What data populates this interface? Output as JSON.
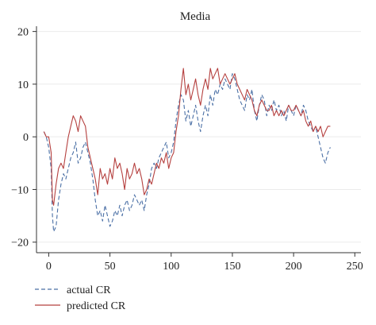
{
  "chart_data": {
    "type": "line",
    "title": "Media",
    "xlabel": "",
    "ylabel": "",
    "xlim": [
      -10,
      255
    ],
    "ylim": [
      -22,
      21
    ],
    "xticks": [
      0,
      50,
      100,
      150,
      200,
      250
    ],
    "yticks": [
      20,
      10,
      0,
      -10,
      -20
    ],
    "grid": "horizontal",
    "legend": "bottom-left",
    "series": [
      {
        "name": "actual CR",
        "color": "#4a6fa5",
        "style": "dashed",
        "points": [
          [
            -4,
            1
          ],
          [
            -2,
            0
          ],
          [
            0,
            -2
          ],
          [
            2,
            -6
          ],
          [
            3,
            -15
          ],
          [
            4,
            -18
          ],
          [
            6,
            -17
          ],
          [
            8,
            -12
          ],
          [
            10,
            -9
          ],
          [
            12,
            -7
          ],
          [
            14,
            -8
          ],
          [
            16,
            -6
          ],
          [
            18,
            -4
          ],
          [
            20,
            -3
          ],
          [
            22,
            -1
          ],
          [
            24,
            -5
          ],
          [
            26,
            -4
          ],
          [
            28,
            -2
          ],
          [
            30,
            -1
          ],
          [
            32,
            -3
          ],
          [
            34,
            -5
          ],
          [
            36,
            -8
          ],
          [
            38,
            -12
          ],
          [
            40,
            -15
          ],
          [
            42,
            -14
          ],
          [
            44,
            -16
          ],
          [
            46,
            -13
          ],
          [
            48,
            -15
          ],
          [
            50,
            -17
          ],
          [
            52,
            -16
          ],
          [
            54,
            -14
          ],
          [
            56,
            -15
          ],
          [
            58,
            -13
          ],
          [
            60,
            -15
          ],
          [
            62,
            -13
          ],
          [
            64,
            -12
          ],
          [
            66,
            -14
          ],
          [
            68,
            -13
          ],
          [
            70,
            -11
          ],
          [
            72,
            -12
          ],
          [
            74,
            -13
          ],
          [
            76,
            -12
          ],
          [
            78,
            -14
          ],
          [
            80,
            -11
          ],
          [
            82,
            -9
          ],
          [
            84,
            -6
          ],
          [
            86,
            -5
          ],
          [
            88,
            -6
          ],
          [
            90,
            -4
          ],
          [
            92,
            -3
          ],
          [
            94,
            -2
          ],
          [
            96,
            -1
          ],
          [
            98,
            -4
          ],
          [
            100,
            -3
          ],
          [
            102,
            -1
          ],
          [
            104,
            3
          ],
          [
            106,
            6
          ],
          [
            108,
            8
          ],
          [
            110,
            7
          ],
          [
            112,
            3
          ],
          [
            114,
            5
          ],
          [
            116,
            2
          ],
          [
            118,
            4
          ],
          [
            120,
            6
          ],
          [
            122,
            3
          ],
          [
            124,
            1
          ],
          [
            126,
            4
          ],
          [
            128,
            6
          ],
          [
            130,
            4
          ],
          [
            132,
            8
          ],
          [
            134,
            6
          ],
          [
            136,
            9
          ],
          [
            138,
            8
          ],
          [
            140,
            10
          ],
          [
            142,
            9
          ],
          [
            144,
            11
          ],
          [
            146,
            10
          ],
          [
            148,
            9
          ],
          [
            150,
            12
          ],
          [
            152,
            11
          ],
          [
            154,
            9
          ],
          [
            156,
            7
          ],
          [
            158,
            6
          ],
          [
            160,
            5
          ],
          [
            162,
            8
          ],
          [
            164,
            7
          ],
          [
            166,
            9
          ],
          [
            168,
            5
          ],
          [
            170,
            3
          ],
          [
            172,
            6
          ],
          [
            174,
            8
          ],
          [
            176,
            7
          ],
          [
            178,
            4
          ],
          [
            180,
            6
          ],
          [
            182,
            5
          ],
          [
            184,
            7
          ],
          [
            186,
            5
          ],
          [
            188,
            6
          ],
          [
            190,
            4
          ],
          [
            192,
            5
          ],
          [
            194,
            3
          ],
          [
            196,
            6
          ],
          [
            198,
            5
          ],
          [
            200,
            4
          ],
          [
            202,
            6
          ],
          [
            204,
            5
          ],
          [
            206,
            4
          ],
          [
            208,
            6
          ],
          [
            210,
            5
          ],
          [
            212,
            3
          ],
          [
            214,
            2
          ],
          [
            216,
            1
          ],
          [
            218,
            2
          ],
          [
            220,
            0
          ],
          [
            222,
            -2
          ],
          [
            224,
            -4
          ],
          [
            226,
            -5
          ],
          [
            228,
            -3
          ],
          [
            230,
            -2
          ]
        ]
      },
      {
        "name": "predicted CR",
        "color": "#b5403f",
        "style": "solid",
        "points": [
          [
            -4,
            1
          ],
          [
            -2,
            0
          ],
          [
            0,
            0
          ],
          [
            2,
            -3
          ],
          [
            3,
            -12
          ],
          [
            4,
            -13
          ],
          [
            6,
            -9
          ],
          [
            8,
            -6
          ],
          [
            10,
            -5
          ],
          [
            12,
            -6
          ],
          [
            14,
            -3
          ],
          [
            16,
            0
          ],
          [
            18,
            2
          ],
          [
            20,
            4
          ],
          [
            22,
            3
          ],
          [
            24,
            1
          ],
          [
            26,
            4
          ],
          [
            28,
            3
          ],
          [
            30,
            2
          ],
          [
            32,
            -2
          ],
          [
            34,
            -4
          ],
          [
            36,
            -6
          ],
          [
            38,
            -8
          ],
          [
            40,
            -11
          ],
          [
            42,
            -6
          ],
          [
            44,
            -8
          ],
          [
            46,
            -7
          ],
          [
            48,
            -9
          ],
          [
            50,
            -6
          ],
          [
            52,
            -8
          ],
          [
            54,
            -4
          ],
          [
            56,
            -6
          ],
          [
            58,
            -5
          ],
          [
            60,
            -7
          ],
          [
            62,
            -10
          ],
          [
            64,
            -6
          ],
          [
            66,
            -8
          ],
          [
            68,
            -7
          ],
          [
            70,
            -5
          ],
          [
            72,
            -7
          ],
          [
            74,
            -6
          ],
          [
            76,
            -8
          ],
          [
            78,
            -11
          ],
          [
            80,
            -10
          ],
          [
            82,
            -8
          ],
          [
            84,
            -9
          ],
          [
            86,
            -7
          ],
          [
            88,
            -5
          ],
          [
            90,
            -6
          ],
          [
            92,
            -4
          ],
          [
            94,
            -5
          ],
          [
            96,
            -3
          ],
          [
            98,
            -6
          ],
          [
            100,
            -4
          ],
          [
            102,
            -3
          ],
          [
            104,
            1
          ],
          [
            106,
            4
          ],
          [
            108,
            9
          ],
          [
            110,
            13
          ],
          [
            112,
            8
          ],
          [
            114,
            10
          ],
          [
            116,
            7
          ],
          [
            118,
            9
          ],
          [
            120,
            11
          ],
          [
            122,
            8
          ],
          [
            124,
            6
          ],
          [
            126,
            9
          ],
          [
            128,
            11
          ],
          [
            130,
            9
          ],
          [
            132,
            13
          ],
          [
            134,
            11
          ],
          [
            136,
            12
          ],
          [
            138,
            13
          ],
          [
            140,
            10
          ],
          [
            142,
            11
          ],
          [
            144,
            12
          ],
          [
            146,
            11
          ],
          [
            148,
            10
          ],
          [
            150,
            11
          ],
          [
            152,
            12
          ],
          [
            154,
            10
          ],
          [
            156,
            9
          ],
          [
            158,
            8
          ],
          [
            160,
            7
          ],
          [
            162,
            9
          ],
          [
            164,
            8
          ],
          [
            166,
            7
          ],
          [
            168,
            5
          ],
          [
            170,
            4
          ],
          [
            172,
            6
          ],
          [
            174,
            7
          ],
          [
            176,
            6
          ],
          [
            178,
            5
          ],
          [
            180,
            5
          ],
          [
            182,
            6
          ],
          [
            184,
            4
          ],
          [
            186,
            5
          ],
          [
            188,
            4
          ],
          [
            190,
            5
          ],
          [
            192,
            4
          ],
          [
            194,
            5
          ],
          [
            196,
            6
          ],
          [
            198,
            5
          ],
          [
            200,
            5
          ],
          [
            202,
            6
          ],
          [
            204,
            5
          ],
          [
            206,
            4
          ],
          [
            208,
            5
          ],
          [
            210,
            3
          ],
          [
            212,
            2
          ],
          [
            214,
            3
          ],
          [
            216,
            1
          ],
          [
            218,
            2
          ],
          [
            220,
            1
          ],
          [
            222,
            2
          ],
          [
            224,
            0
          ],
          [
            226,
            1
          ],
          [
            228,
            2
          ],
          [
            230,
            2
          ]
        ]
      }
    ]
  }
}
